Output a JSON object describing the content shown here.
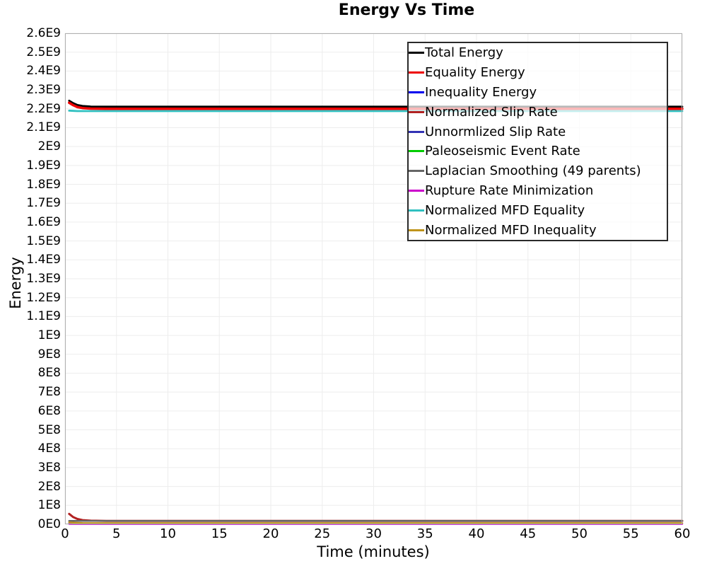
{
  "chart_data": {
    "type": "line",
    "title": "Energy Vs Time",
    "xlabel": "Time (minutes)",
    "ylabel": "Energy",
    "xlim": [
      0,
      60
    ],
    "ylim": [
      0,
      2600000000
    ],
    "grid": true,
    "legend_position": "upper-right",
    "x_ticks": [
      0,
      5,
      10,
      15,
      20,
      25,
      30,
      35,
      40,
      45,
      50,
      55,
      60
    ],
    "y_tick_labels": [
      "0E0",
      "1E8",
      "2E8",
      "3E8",
      "4E8",
      "5E8",
      "6E8",
      "7E8",
      "8E8",
      "9E8",
      "1E9",
      "1.1E9",
      "1.2E9",
      "1.3E9",
      "1.4E9",
      "1.5E9",
      "1.6E9",
      "1.7E9",
      "1.8E9",
      "1.9E9",
      "2E9",
      "2.1E9",
      "2.2E9",
      "2.3E9",
      "2.4E9",
      "2.5E9",
      "2.6E9"
    ],
    "x_common": [
      0.4,
      0.8,
      1.2,
      1.7,
      2.5,
      4,
      6,
      10,
      20,
      30,
      40,
      50,
      60
    ],
    "series": [
      {
        "name": "Total Energy",
        "color": "#000000",
        "width": 2.8,
        "y": [
          2243000000.0,
          2230000000.0,
          2220000000.0,
          2215000000.0,
          2212000000.0,
          2211000000.0,
          2211000000.0,
          2211000000.0,
          2211000000.0,
          2211000000.0,
          2211000000.0,
          2211000000.0,
          2211000000.0
        ]
      },
      {
        "name": "Equality Energy",
        "color": "#ee0000",
        "width": 3.5,
        "y": [
          2232000000.0,
          2219000000.0,
          2209000000.0,
          2204000000.0,
          2201000000.0,
          2200000000.0,
          2200000000.0,
          2200000000.0,
          2200000000.0,
          2200000000.0,
          2200000000.0,
          2200000000.0,
          2200000000.0
        ]
      },
      {
        "name": "Inequality Energy",
        "color": "#0000ee",
        "width": 2.2,
        "y": [
          4000000.0,
          3500000.0,
          3000000.0,
          3000000.0,
          3000000.0,
          3000000.0,
          3000000.0,
          3000000.0,
          3000000.0,
          3000000.0,
          3000000.0,
          3000000.0,
          3000000.0
        ]
      },
      {
        "name": "Normalized Slip Rate",
        "color": "#b22222",
        "width": 3.0,
        "y": [
          55000000.0,
          38000000.0,
          28000000.0,
          22000000.0,
          19000000.0,
          18000000.0,
          18000000.0,
          18000000.0,
          18000000.0,
          18000000.0,
          18000000.0,
          18000000.0,
          18000000.0
        ]
      },
      {
        "name": "Unnormlized Slip Rate",
        "color": "#3333b4",
        "width": 2.2,
        "y": [
          2000000.0,
          2000000.0,
          2000000.0,
          2000000.0,
          2000000.0,
          2000000.0,
          2000000.0,
          2000000.0,
          2000000.0,
          2000000.0,
          2000000.0,
          2000000.0,
          2000000.0
        ]
      },
      {
        "name": "Paleoseismic Event Rate",
        "color": "#00cc00",
        "width": 2.2,
        "y": [
          2500000.0,
          2500000.0,
          2500000.0,
          2500000.0,
          2500000.0,
          2500000.0,
          2500000.0,
          2500000.0,
          2500000.0,
          2500000.0,
          2500000.0,
          2500000.0,
          2500000.0
        ]
      },
      {
        "name": "Laplacian Smoothing (49 parents)",
        "color": "#666666",
        "width": 2.5,
        "y": [
          18000000.0,
          18000000.0,
          18000000.0,
          18000000.0,
          18000000.0,
          18000000.0,
          18000000.0,
          18000000.0,
          18000000.0,
          18000000.0,
          18000000.0,
          18000000.0,
          18000000.0
        ]
      },
      {
        "name": "Rupture Rate Minimization",
        "color": "#cc00cc",
        "width": 2.2,
        "y": [
          1500000.0,
          1500000.0,
          1500000.0,
          1500000.0,
          1500000.0,
          1500000.0,
          1500000.0,
          1500000.0,
          1500000.0,
          1500000.0,
          1500000.0,
          1500000.0,
          1500000.0
        ]
      },
      {
        "name": "Normalized MFD Equality",
        "color": "#30c0c0",
        "width": 2.8,
        "y": [
          2190000000.0,
          2189000000.0,
          2188000000.0,
          2188000000.0,
          2188000000.0,
          2188000000.0,
          2188000000.0,
          2188000000.0,
          2188000000.0,
          2188000000.0,
          2188000000.0,
          2188000000.0,
          2188000000.0
        ]
      },
      {
        "name": "Normalized MFD Inequality",
        "color": "#bf941b",
        "width": 2.5,
        "y": [
          10000000.0,
          8500000.0,
          7500000.0,
          6500000.0,
          6000000.0,
          6000000.0,
          6000000.0,
          6000000.0,
          6000000.0,
          6000000.0,
          6000000.0,
          6000000.0,
          6000000.0
        ]
      }
    ]
  }
}
